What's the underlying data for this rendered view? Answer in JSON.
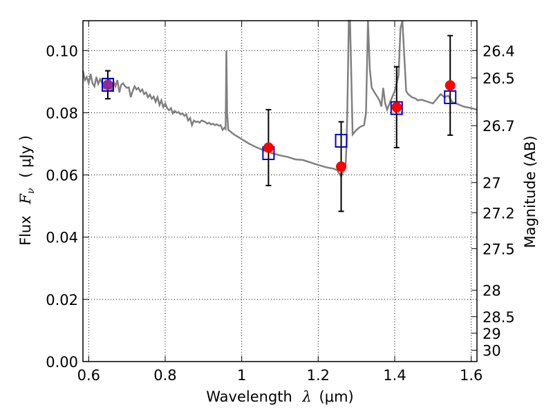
{
  "chart_data": {
    "type": "scatter",
    "xlabel_prefix": "Wavelength",
    "xlabel_symbol": "λ",
    "xlabel_unit": "(μm)",
    "ylabel_prefix": "Flux",
    "ylabel_symbol": "F",
    "ylabel_sub": "ν",
    "ylabel_unit": "( μJy )",
    "y2label": "Magnitude (AB)",
    "xlim": [
      0.585,
      1.615
    ],
    "ylim": [
      0.0,
      0.1096
    ],
    "x_ticks": [
      0.6,
      0.8,
      1.0,
      1.2,
      1.4,
      1.6
    ],
    "x_tick_labels": [
      "0.6",
      "0.8",
      "1",
      "1.2",
      "1.4",
      "1.6"
    ],
    "y_ticks": [
      0.0,
      0.02,
      0.04,
      0.06,
      0.08,
      0.1
    ],
    "y_tick_labels": [
      "0.00",
      "0.02",
      "0.04",
      "0.06",
      "0.08",
      "0.10"
    ],
    "mag_ticks": [
      26.4,
      26.5,
      26.7,
      27,
      27.2,
      27.5,
      28,
      28.5,
      29,
      30
    ],
    "mag_tick_labels": [
      "26.4",
      "26.5",
      "26.7",
      "27",
      "27.2",
      "27.5",
      "28",
      "28.5",
      "29",
      "30"
    ],
    "grid": true,
    "colors": {
      "spectrum": "#808080",
      "observed": "#ff0000",
      "model": "#0000cc",
      "errorbar": "#000000",
      "overlap": "#8e2a8e"
    },
    "spectrum": {
      "x": [
        0.585,
        0.59,
        0.595,
        0.6,
        0.605,
        0.61,
        0.615,
        0.62,
        0.625,
        0.63,
        0.635,
        0.64,
        0.645,
        0.65,
        0.655,
        0.66,
        0.665,
        0.67,
        0.675,
        0.68,
        0.685,
        0.69,
        0.695,
        0.7,
        0.705,
        0.71,
        0.715,
        0.72,
        0.725,
        0.73,
        0.735,
        0.74,
        0.745,
        0.75,
        0.755,
        0.76,
        0.765,
        0.77,
        0.775,
        0.78,
        0.785,
        0.79,
        0.795,
        0.8,
        0.805,
        0.81,
        0.815,
        0.82,
        0.825,
        0.83,
        0.835,
        0.84,
        0.845,
        0.85,
        0.855,
        0.86,
        0.865,
        0.87,
        0.875,
        0.88,
        0.885,
        0.89,
        0.895,
        0.9,
        0.905,
        0.91,
        0.915,
        0.92,
        0.925,
        0.93,
        0.935,
        0.94,
        0.945,
        0.95,
        0.955,
        0.958,
        0.96,
        0.962,
        0.965,
        0.97,
        0.98,
        1.0,
        1.02,
        1.04,
        1.06,
        1.08,
        1.1,
        1.12,
        1.14,
        1.16,
        1.18,
        1.2,
        1.22,
        1.24,
        1.25,
        1.255,
        1.26,
        1.265,
        1.27,
        1.272,
        1.274,
        1.276,
        1.278,
        1.28,
        1.283,
        1.286,
        1.29,
        1.3,
        1.31,
        1.32,
        1.325,
        1.33,
        1.335,
        1.34,
        1.35,
        1.36,
        1.365,
        1.37,
        1.375,
        1.38,
        1.39,
        1.4,
        1.41,
        1.415,
        1.42,
        1.43,
        1.435,
        1.44,
        1.445,
        1.45,
        1.455,
        1.46,
        1.47,
        1.48,
        1.5,
        1.52,
        1.53,
        1.54,
        1.55,
        1.56,
        1.58,
        1.6,
        1.615
      ],
      "y": [
        0.0935,
        0.0905,
        0.0915,
        0.0895,
        0.0925,
        0.0895,
        0.0885,
        0.0915,
        0.0893,
        0.0908,
        0.0895,
        0.088,
        0.0895,
        0.089,
        0.091,
        0.087,
        0.09,
        0.0885,
        0.0905,
        0.0865,
        0.089,
        0.0895,
        0.0885,
        0.088,
        0.0882,
        0.085,
        0.087,
        0.0885,
        0.0875,
        0.088,
        0.0868,
        0.0875,
        0.086,
        0.0865,
        0.085,
        0.0858,
        0.0845,
        0.0852,
        0.0835,
        0.085,
        0.0825,
        0.084,
        0.0818,
        0.083,
        0.0815,
        0.0808,
        0.0815,
        0.0798,
        0.0806,
        0.08,
        0.0802,
        0.0795,
        0.0798,
        0.079,
        0.0795,
        0.0775,
        0.0783,
        0.076,
        0.0775,
        0.077,
        0.0772,
        0.0768,
        0.0775,
        0.0773,
        0.077,
        0.0765,
        0.0768,
        0.0762,
        0.0765,
        0.076,
        0.0763,
        0.0758,
        0.076,
        0.0745,
        0.0752,
        0.0748,
        0.1,
        0.08,
        0.0745,
        0.074,
        0.073,
        0.0715,
        0.07,
        0.0688,
        0.0678,
        0.067,
        0.0663,
        0.0658,
        0.065,
        0.0648,
        0.064,
        0.0632,
        0.0625,
        0.062,
        0.0615,
        0.0605,
        0.0595,
        0.061,
        0.062,
        0.064,
        0.07,
        0.08,
        0.095,
        0.11,
        0.11,
        0.095,
        0.073,
        0.0745,
        0.0755,
        0.076,
        0.08,
        0.113,
        0.094,
        0.088,
        0.086,
        0.084,
        0.082,
        0.088,
        0.083,
        0.081,
        0.084,
        0.087,
        0.092,
        0.107,
        0.11,
        0.087,
        0.086,
        0.0855,
        0.085,
        0.0848,
        0.0845,
        0.084,
        0.0842,
        0.0838,
        0.083,
        0.086,
        0.085,
        0.0855,
        0.0835,
        0.083,
        0.082,
        0.0815,
        0.081
      ]
    },
    "observed": [
      {
        "x": 0.65,
        "y": 0.089,
        "err": 0.0045
      },
      {
        "x": 1.07,
        "y": 0.0688,
        "err": 0.0122
      },
      {
        "x": 1.26,
        "y": 0.0627,
        "err": 0.0144
      },
      {
        "x": 1.405,
        "y": 0.0818,
        "err": 0.013
      },
      {
        "x": 1.545,
        "y": 0.0888,
        "err": 0.016
      }
    ],
    "model": [
      {
        "x": 0.65,
        "y": 0.089
      },
      {
        "x": 1.07,
        "y": 0.067
      },
      {
        "x": 1.26,
        "y": 0.071
      },
      {
        "x": 1.405,
        "y": 0.0815
      },
      {
        "x": 1.545,
        "y": 0.085
      }
    ]
  }
}
